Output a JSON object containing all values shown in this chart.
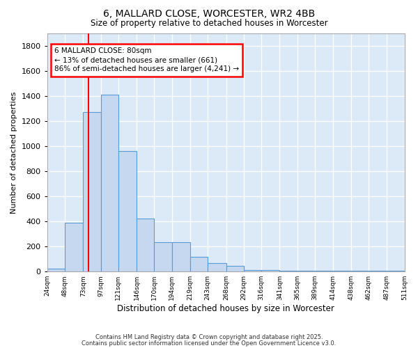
{
  "title1": "6, MALLARD CLOSE, WORCESTER, WR2 4BB",
  "title2": "Size of property relative to detached houses in Worcester",
  "xlabel": "Distribution of detached houses by size in Worcester",
  "ylabel": "Number of detached properties",
  "bin_labels": [
    "24sqm",
    "48sqm",
    "73sqm",
    "97sqm",
    "121sqm",
    "146sqm",
    "170sqm",
    "194sqm",
    "219sqm",
    "243sqm",
    "268sqm",
    "292sqm",
    "316sqm",
    "341sqm",
    "365sqm",
    "389sqm",
    "414sqm",
    "438sqm",
    "462sqm",
    "487sqm",
    "511sqm"
  ],
  "bin_edges": [
    24,
    48,
    73,
    97,
    121,
    146,
    170,
    194,
    219,
    243,
    268,
    292,
    316,
    341,
    365,
    389,
    414,
    438,
    462,
    487,
    511
  ],
  "bar_heights": [
    25,
    390,
    1270,
    1410,
    960,
    420,
    235,
    235,
    120,
    70,
    45,
    15,
    10,
    5,
    5,
    5,
    5,
    5,
    5,
    5
  ],
  "bar_color": "#c5d8f0",
  "bar_edge_color": "#5b9bd5",
  "bg_color": "#dce9f7",
  "grid_color": "#ffffff",
  "red_line_x": 80,
  "ylim": [
    0,
    1900
  ],
  "yticks": [
    0,
    200,
    400,
    600,
    800,
    1000,
    1200,
    1400,
    1600,
    1800
  ],
  "annotation_line1": "6 MALLARD CLOSE: 80sqm",
  "annotation_line2": "← 13% of detached houses are smaller (661)",
  "annotation_line3": "86% of semi-detached houses are larger (4,241) →",
  "footer1": "Contains HM Land Registry data © Crown copyright and database right 2025.",
  "footer2": "Contains public sector information licensed under the Open Government Licence v3.0."
}
